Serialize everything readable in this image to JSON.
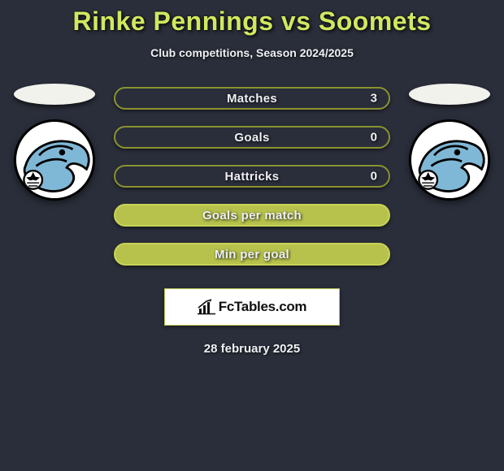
{
  "title": "Rinke Pennings vs Soomets",
  "subtitle": "Club competitions, Season 2024/2025",
  "date": "28 february 2025",
  "brand": "FcTables.com",
  "colors": {
    "background": "#2a2e3a",
    "title": "#d0e860",
    "text": "#eef0f4",
    "ellipse": "#f2f2ed",
    "bar_border_dark": "#8a9330",
    "bar_fill_dark": "#2a2e3a",
    "bar_border_light": "#c8d455",
    "bar_fill_light": "#b7c24d",
    "logo_sky": "#7fb8d6",
    "logo_outline": "#000000",
    "logo_white": "#ffffff"
  },
  "stats": [
    {
      "label": "Matches",
      "right_value": "3",
      "fill": "#2a2e3a",
      "border": "#8a9330"
    },
    {
      "label": "Goals",
      "right_value": "0",
      "fill": "#2a2e3a",
      "border": "#8a9330"
    },
    {
      "label": "Hattricks",
      "right_value": "0",
      "fill": "#2a2e3a",
      "border": "#8a9330"
    },
    {
      "label": "Goals per match",
      "right_value": "",
      "fill": "#b7c24d",
      "border": "#c8d455"
    },
    {
      "label": "Min per goal",
      "right_value": "",
      "fill": "#b7c24d",
      "border": "#c8d455"
    }
  ],
  "club_left": {
    "name": "FC Den Bosch"
  },
  "club_right": {
    "name": "FC Den Bosch"
  }
}
